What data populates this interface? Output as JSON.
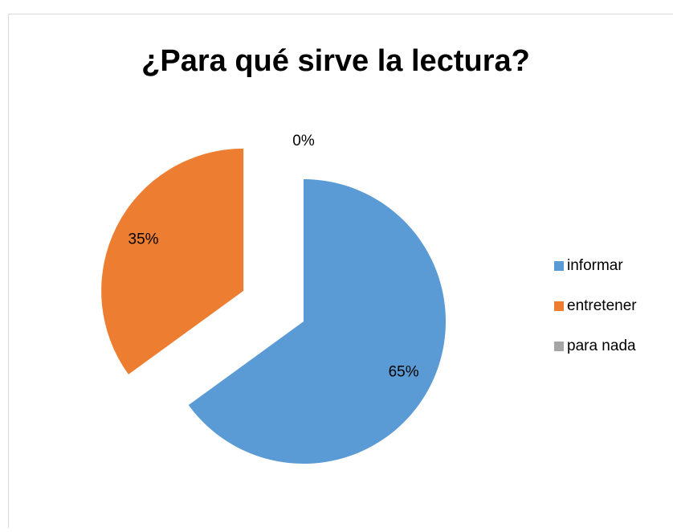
{
  "chart_data": {
    "type": "pie",
    "title": "¿Para qué sirve la lectura?",
    "categories": [
      "informar",
      "entretener",
      "para nada"
    ],
    "values": [
      65,
      35,
      0
    ],
    "value_labels": [
      "65%",
      "35%",
      "0%"
    ],
    "colors": [
      "#5b9bd5",
      "#ed7d31",
      "#a5a5a5"
    ],
    "legend": "right"
  }
}
